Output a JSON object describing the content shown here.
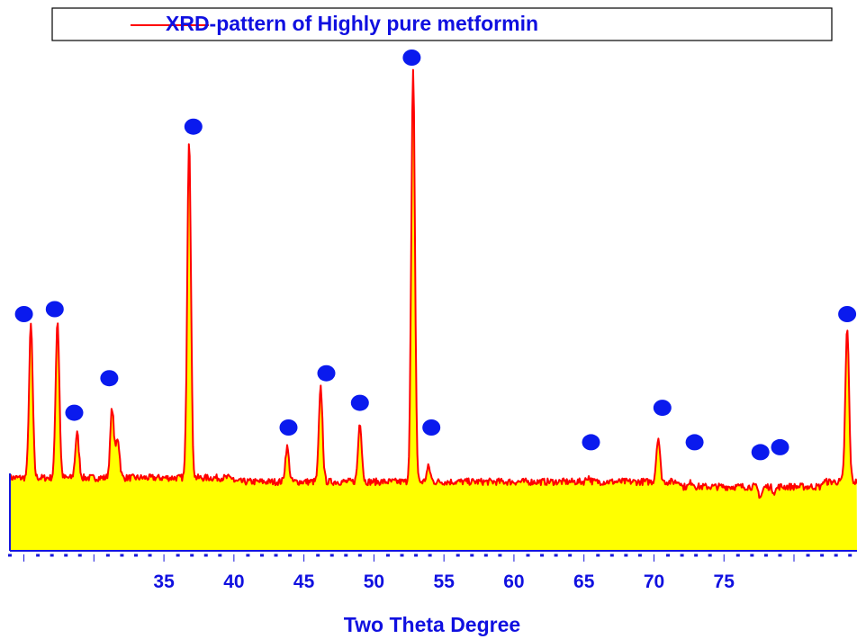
{
  "chart_data": {
    "type": "line",
    "title": "",
    "xlabel": "Two Theta Degree",
    "ylabel": "",
    "xlim": [
      24.0,
      84.5
    ],
    "ylim": [
      0,
      100
    ],
    "grid": false,
    "legend": {
      "placement": "top",
      "entries": [
        "XRD-pattern of Highly pure metformin"
      ]
    },
    "x_tick_labels": [
      35,
      40,
      45,
      50,
      55,
      60,
      65,
      70,
      75
    ],
    "colors": {
      "line": "#ff0000",
      "fill": "#ffff00",
      "text": "#1010e0",
      "marker": "#0a1aee",
      "axis": "#1515dd"
    },
    "baseline": 14,
    "peaks": [
      {
        "x": 25.5,
        "y": 45
      },
      {
        "x": 27.4,
        "y": 46
      },
      {
        "x": 28.8,
        "y": 23
      },
      {
        "x": 31.3,
        "y": 28
      },
      {
        "x": 31.7,
        "y": 22
      },
      {
        "x": 36.8,
        "y": 83
      },
      {
        "x": 43.8,
        "y": 21
      },
      {
        "x": 46.2,
        "y": 33
      },
      {
        "x": 49.0,
        "y": 26
      },
      {
        "x": 52.8,
        "y": 97
      },
      {
        "x": 53.9,
        "y": 17
      },
      {
        "x": 65.3,
        "y": 15
      },
      {
        "x": 70.3,
        "y": 23
      },
      {
        "x": 72.7,
        "y": 15
      },
      {
        "x": 77.6,
        "y": 12
      },
      {
        "x": 78.6,
        "y": 13
      },
      {
        "x": 83.8,
        "y": 45
      }
    ],
    "markers": [
      {
        "x": 25.0,
        "y": 48
      },
      {
        "x": 27.2,
        "y": 49
      },
      {
        "x": 28.6,
        "y": 28
      },
      {
        "x": 31.1,
        "y": 35
      },
      {
        "x": 37.1,
        "y": 86
      },
      {
        "x": 43.9,
        "y": 25
      },
      {
        "x": 46.6,
        "y": 36
      },
      {
        "x": 49.0,
        "y": 30
      },
      {
        "x": 52.7,
        "y": 100
      },
      {
        "x": 54.1,
        "y": 25
      },
      {
        "x": 65.5,
        "y": 22
      },
      {
        "x": 70.6,
        "y": 29
      },
      {
        "x": 72.9,
        "y": 22
      },
      {
        "x": 77.6,
        "y": 20
      },
      {
        "x": 79.0,
        "y": 21
      },
      {
        "x": 83.8,
        "y": 48
      }
    ]
  }
}
